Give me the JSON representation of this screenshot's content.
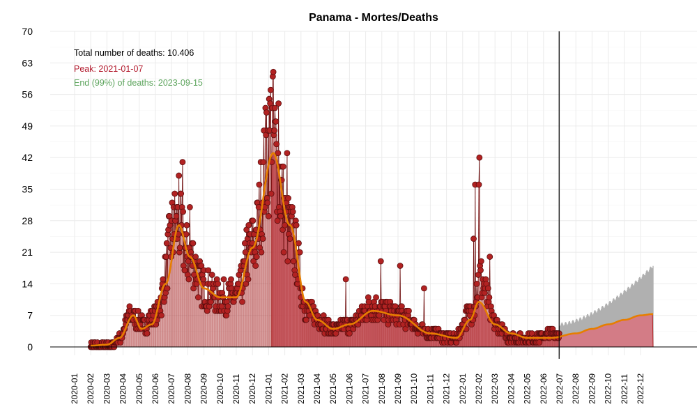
{
  "chart_data": {
    "type": "line",
    "title": "Panama - Mortes/Deaths",
    "xlabel": "",
    "ylabel": "",
    "ylim": [
      0,
      70
    ],
    "y_ticks": [
      "0",
      "7",
      "14",
      "21",
      "28",
      "35",
      "42",
      "49",
      "56",
      "63",
      "70"
    ],
    "x_tick_labels": [
      "2020-01",
      "2020-02",
      "2020-03",
      "2020-04",
      "2020-05",
      "2020-06",
      "2020-07",
      "2020-08",
      "2020-09",
      "2020-10",
      "2020-11",
      "2020-12",
      "2021-01",
      "2021-02",
      "2021-03",
      "2021-04",
      "2021-05",
      "2021-06",
      "2021-07",
      "2021-08",
      "2021-09",
      "2021-10",
      "2021-11",
      "2021-12",
      "2022-01",
      "2022-02",
      "2022-03",
      "2022-04",
      "2022-05",
      "2022-06",
      "2022-07",
      "2022-08",
      "2022-09",
      "2022-10",
      "2022-11",
      "2022-12"
    ],
    "annotations": {
      "total": "Total number of deaths: 10.406",
      "peak": "Peak: 2021-01-07",
      "end": "End (99%) of deaths: 2023-09-15"
    },
    "colors": {
      "points": "#b22222",
      "point_edge": "#5a0e0e",
      "smooth": "#e67e00",
      "fill": "#d9737f",
      "projection": "#b0b0b0",
      "peak_text": "#b2182b",
      "end_text": "#5ea55e"
    },
    "cutoff_date": "2022-06-30",
    "peak_date": "2021-01-07",
    "smooth_curve": [
      {
        "date": "2020-02-01",
        "value": 0.3
      },
      {
        "date": "2020-03-01",
        "value": 0.5
      },
      {
        "date": "2020-03-25",
        "value": 2
      },
      {
        "date": "2020-04-20",
        "value": 7
      },
      {
        "date": "2020-05-05",
        "value": 4
      },
      {
        "date": "2020-05-25",
        "value": 5
      },
      {
        "date": "2020-06-20",
        "value": 14
      },
      {
        "date": "2020-07-15",
        "value": 27
      },
      {
        "date": "2020-08-05",
        "value": 20
      },
      {
        "date": "2020-09-01",
        "value": 13
      },
      {
        "date": "2020-10-01",
        "value": 11
      },
      {
        "date": "2020-11-01",
        "value": 11
      },
      {
        "date": "2020-12-01",
        "value": 22
      },
      {
        "date": "2021-01-10",
        "value": 43
      },
      {
        "date": "2021-02-10",
        "value": 27
      },
      {
        "date": "2021-03-10",
        "value": 10
      },
      {
        "date": "2021-04-01",
        "value": 6
      },
      {
        "date": "2021-05-01",
        "value": 4
      },
      {
        "date": "2021-06-01",
        "value": 5
      },
      {
        "date": "2021-07-15",
        "value": 8
      },
      {
        "date": "2021-09-01",
        "value": 7
      },
      {
        "date": "2021-11-01",
        "value": 3
      },
      {
        "date": "2021-12-20",
        "value": 2
      },
      {
        "date": "2022-01-15",
        "value": 6
      },
      {
        "date": "2022-02-01",
        "value": 10
      },
      {
        "date": "2022-03-01",
        "value": 5
      },
      {
        "date": "2022-04-01",
        "value": 3
      },
      {
        "date": "2022-05-01",
        "value": 2
      },
      {
        "date": "2022-06-15",
        "value": 2
      },
      {
        "date": "2022-08-01",
        "value": 3
      },
      {
        "date": "2022-09-01",
        "value": 4
      },
      {
        "date": "2022-10-01",
        "value": 5
      },
      {
        "date": "2022-11-01",
        "value": 6
      },
      {
        "date": "2022-12-01",
        "value": 7
      },
      {
        "date": "2022-12-25",
        "value": 7.3
      }
    ],
    "daily_series": {
      "start_date": "2020-02-01",
      "end_date": "2022-06-30",
      "knots": [
        {
          "date": "2020-02-01",
          "value": 0
        },
        {
          "date": "2020-03-10",
          "value": 0
        },
        {
          "date": "2020-03-25",
          "value": 2
        },
        {
          "date": "2020-04-15",
          "value": 7
        },
        {
          "date": "2020-05-10",
          "value": 5
        },
        {
          "date": "2020-06-01",
          "value": 7
        },
        {
          "date": "2020-07-10",
          "value": 27
        },
        {
          "date": "2020-08-05",
          "value": 20
        },
        {
          "date": "2020-09-01",
          "value": 13
        },
        {
          "date": "2020-10-01",
          "value": 11
        },
        {
          "date": "2020-11-01",
          "value": 11
        },
        {
          "date": "2020-12-01",
          "value": 22
        },
        {
          "date": "2021-01-07",
          "value": 46
        },
        {
          "date": "2021-02-10",
          "value": 25
        },
        {
          "date": "2021-03-15",
          "value": 8
        },
        {
          "date": "2021-05-01",
          "value": 4
        },
        {
          "date": "2021-06-01",
          "value": 5
        },
        {
          "date": "2021-07-15",
          "value": 9
        },
        {
          "date": "2021-09-01",
          "value": 7
        },
        {
          "date": "2021-11-01",
          "value": 3
        },
        {
          "date": "2021-12-15",
          "value": 2
        },
        {
          "date": "2022-01-20",
          "value": 8
        },
        {
          "date": "2022-02-03",
          "value": 15
        },
        {
          "date": "2022-03-01",
          "value": 5
        },
        {
          "date": "2022-04-01",
          "value": 2
        },
        {
          "date": "2022-05-01",
          "value": 2
        },
        {
          "date": "2022-06-30",
          "value": 3
        }
      ],
      "spikes": [
        {
          "date": "2020-07-22",
          "value": 41
        },
        {
          "date": "2020-07-15",
          "value": 38
        },
        {
          "date": "2020-07-05",
          "value": 31
        },
        {
          "date": "2020-08-05",
          "value": 31
        },
        {
          "date": "2020-11-20",
          "value": 26
        },
        {
          "date": "2021-01-10",
          "value": 61
        },
        {
          "date": "2021-01-05",
          "value": 57
        },
        {
          "date": "2021-01-20",
          "value": 54
        },
        {
          "date": "2020-12-28",
          "value": 52
        },
        {
          "date": "2021-02-05",
          "value": 43
        },
        {
          "date": "2021-05-25",
          "value": 15
        },
        {
          "date": "2021-07-30",
          "value": 19
        },
        {
          "date": "2021-09-05",
          "value": 18
        },
        {
          "date": "2021-10-20",
          "value": 13
        },
        {
          "date": "2022-01-25",
          "value": 36
        },
        {
          "date": "2022-02-02",
          "value": 42
        },
        {
          "date": "2022-02-01",
          "value": 36
        },
        {
          "date": "2022-01-22",
          "value": 24
        },
        {
          "date": "2022-02-20",
          "value": 20
        }
      ]
    },
    "projection": {
      "start_date": "2022-07-01",
      "end_date": "2022-12-25",
      "start_value": 5,
      "end_value": 18
    }
  }
}
